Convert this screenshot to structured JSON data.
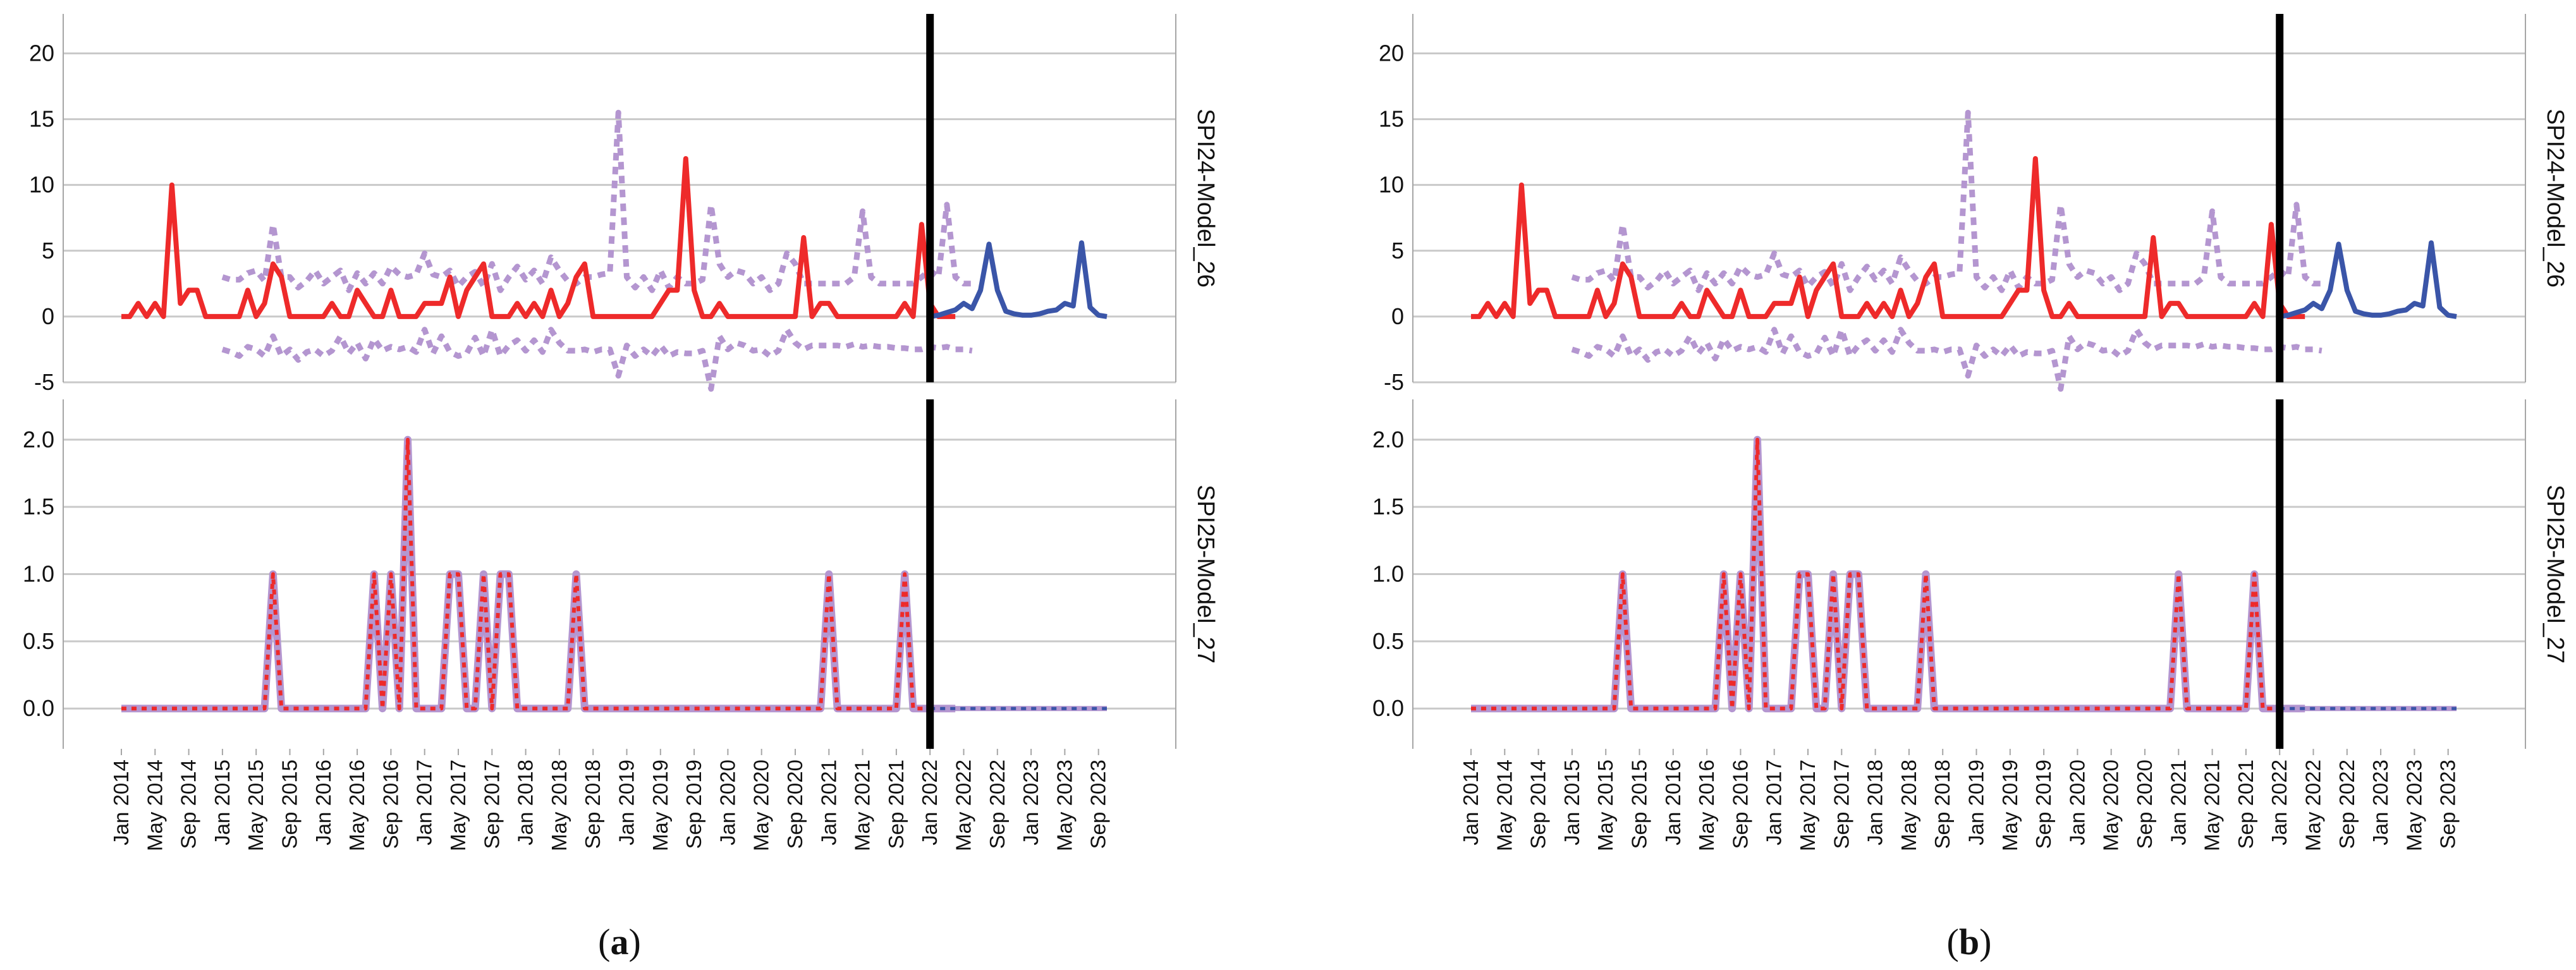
{
  "colors": {
    "observed": "#ee2a2a",
    "forecast": "#3a55a8",
    "bounds": "#b496d0",
    "divider": "#000000",
    "gridline": "#c9c9c9",
    "frame": "#a6a6a6"
  },
  "chart_data": [
    {
      "panel": "a",
      "caption": {
        "open": "(",
        "letter": "a",
        "close": ")"
      },
      "x_tick_labels": [
        "Jan 2014",
        "May 2014",
        "Sep 2014",
        "Jan 2015",
        "May 2015",
        "Sep 2015",
        "Jan 2016",
        "May 2016",
        "Sep 2016",
        "Jan 2017",
        "May 2017",
        "Sep 2017",
        "Jan 2018",
        "May 2018",
        "Sep 2018",
        "Jan 2019",
        "May 2019",
        "Sep 2019",
        "Jan 2020",
        "May 2020",
        "Sep 2020",
        "Jan 2021",
        "May 2021",
        "Sep 2021",
        "Jan 2022",
        "May 2022",
        "Sep 2022",
        "Jan 2023",
        "May 2023",
        "Sep 2023"
      ],
      "forecast_start": "Jan 2022",
      "subplots": [
        {
          "type": "line",
          "ylabel": "SPI24-Model_26",
          "ylim": [
            -5,
            23
          ],
          "yticks": [
            -5,
            0,
            5,
            10,
            15,
            20
          ],
          "ytick_labels": [
            "-5",
            "0",
            "5",
            "10",
            "15",
            "20"
          ],
          "observed": [
            0,
            0,
            1,
            0,
            1,
            0,
            10,
            1,
            2,
            2,
            0,
            0,
            0,
            0,
            0,
            2,
            0,
            1,
            4,
            3,
            0,
            0,
            0,
            0,
            0,
            1,
            0,
            0,
            2,
            1,
            0,
            0,
            2,
            0,
            0,
            0,
            1,
            1,
            1,
            3,
            0,
            2,
            3,
            4,
            0,
            0,
            0,
            1,
            0,
            1,
            0,
            2,
            0,
            1,
            3,
            4,
            0,
            0,
            0,
            0,
            0,
            0,
            0,
            0,
            1,
            2,
            2,
            12,
            2,
            0,
            0,
            1,
            0,
            0,
            0,
            0,
            0,
            0,
            0,
            0,
            0,
            6,
            0,
            1,
            1,
            0,
            0,
            0,
            0,
            0,
            0,
            0,
            0,
            1,
            0,
            7,
            1,
            0,
            0,
            0
          ],
          "forecast": [
            0,
            0.1,
            0.3,
            0.5,
            1,
            0.6,
            2,
            5.5,
            2,
            0.4,
            0.2,
            0.1,
            0.1,
            0.2,
            0.4,
            0.5,
            1,
            0.8,
            5.6,
            0.7,
            0.1,
            0
          ],
          "upper_bound": [
            3,
            2.8,
            2.8,
            3.3,
            3.5,
            2.7,
            7,
            3,
            3,
            2.2,
            2.7,
            3.5,
            2.5,
            3,
            3.5,
            2,
            3.3,
            2.5,
            3.3,
            2.5,
            3.8,
            3.2,
            3,
            3.2,
            4.8,
            3.2,
            3,
            3.5,
            2.3,
            3,
            3.4,
            2.3,
            4,
            2,
            3,
            3.8,
            2.8,
            3.5,
            2.5,
            4.5,
            3.5,
            2.7,
            2.5,
            3,
            3,
            3.2,
            3.3,
            15.5,
            3,
            2.2,
            3,
            2,
            3.5,
            2.2,
            3,
            2.5,
            2.5,
            2.8,
            8.5,
            4,
            3,
            3.5,
            3.3,
            2.5,
            3,
            2,
            2.5,
            4.8,
            4,
            2.5,
            2.5,
            2.5,
            2.5,
            2.5,
            2.5,
            3,
            8,
            3,
            2.5,
            2.5,
            2.5,
            2.5,
            2.5,
            3,
            3.5,
            3,
            8.5,
            3,
            2.5,
            2.5
          ],
          "lower_bound": [
            -2.5,
            -2.7,
            -3,
            -2.3,
            -2.5,
            -3,
            -1.5,
            -3,
            -2.5,
            -3.3,
            -2.7,
            -2.5,
            -3,
            -2.6,
            -1.5,
            -2.8,
            -2,
            -3.2,
            -1.7,
            -2.6,
            -2.3,
            -2.5,
            -2.3,
            -2.7,
            -1,
            -2.8,
            -1.5,
            -2.7,
            -3,
            -2.8,
            -1.6,
            -3,
            -1,
            -3,
            -2.2,
            -1.8,
            -2.6,
            -1.8,
            -2.7,
            -1,
            -2,
            -2.6,
            -2.6,
            -2.5,
            -2.7,
            -2.5,
            -2.5,
            -4.5,
            -2.2,
            -3,
            -2.5,
            -3,
            -2.2,
            -3,
            -2.7,
            -2.8,
            -2.8,
            -2.6,
            -5.5,
            -1.5,
            -2.5,
            -2,
            -2.2,
            -2.6,
            -2.5,
            -3,
            -2.6,
            -1,
            -2,
            -2.5,
            -2.2,
            -2.2,
            -2.2,
            -2.2,
            -2.3,
            -2.1,
            -2.3,
            -2.2,
            -2.3,
            -2.3,
            -2.4,
            -2.4,
            -2.5,
            -2.5,
            -2.3,
            -2.4,
            -2.3,
            -2.5,
            -2.5,
            -2.6
          ]
        },
        {
          "type": "line",
          "ylabel": "SPI25-Model_27",
          "ylim": [
            -0.3,
            2.3
          ],
          "yticks": [
            0,
            0.5,
            1.0,
            1.5,
            2.0
          ],
          "ytick_labels": [
            "0.0",
            "0.5",
            "1.0",
            "1.5",
            "2.0"
          ],
          "observed": [
            0,
            0,
            0,
            0,
            0,
            0,
            0,
            0,
            0,
            0,
            0,
            0,
            0,
            0,
            0,
            0,
            0,
            0,
            1,
            0,
            0,
            0,
            0,
            0,
            0,
            0,
            0,
            0,
            0,
            0,
            1,
            0,
            1,
            0,
            2,
            0,
            0,
            0,
            0,
            1,
            1,
            0,
            0,
            1,
            0,
            1,
            1,
            0,
            0,
            0,
            0,
            0,
            0,
            0,
            1,
            0,
            0,
            0,
            0,
            0,
            0,
            0,
            0,
            0,
            0,
            0,
            0,
            0,
            0,
            0,
            0,
            0,
            0,
            0,
            0,
            0,
            0,
            0,
            0,
            0,
            0,
            0,
            0,
            0,
            1,
            0,
            0,
            0,
            0,
            0,
            0,
            0,
            0,
            1,
            0,
            0,
            0,
            0,
            0,
            0
          ],
          "forecast": [
            0,
            0,
            0,
            0,
            0,
            0,
            0,
            0,
            0,
            0,
            0,
            0,
            0,
            0,
            0,
            0,
            0,
            0,
            0,
            0,
            0,
            0
          ]
        }
      ]
    },
    {
      "panel": "b",
      "caption": {
        "open": "(",
        "letter": "b",
        "close": ")"
      },
      "x_tick_labels": [
        "Jan 2014",
        "May 2014",
        "Sep 2014",
        "Jan 2015",
        "May 2015",
        "Sep 2015",
        "Jan 2016",
        "May 2016",
        "Sep 2016",
        "Jan 2017",
        "May 2017",
        "Sep 2017",
        "Jan 2018",
        "May 2018",
        "Sep 2018",
        "Jan 2019",
        "May 2019",
        "Sep 2019",
        "Jan 2020",
        "May 2020",
        "Sep 2020",
        "Jan 2021",
        "May 2021",
        "Sep 2021",
        "Jan 2022",
        "May 2022",
        "Sep 2022",
        "Jan 2023",
        "May 2023",
        "Sep 2023"
      ],
      "forecast_start": "Jan 2022",
      "subplots": [
        {
          "type": "line",
          "ylabel": "SPI24-Model_26",
          "ylim": [
            -5,
            23
          ],
          "yticks": [
            -5,
            0,
            5,
            10,
            15,
            20
          ],
          "ytick_labels": [
            "-5",
            "0",
            "5",
            "10",
            "15",
            "20"
          ],
          "observed": [
            0,
            0,
            1,
            0,
            1,
            0,
            10,
            1,
            2,
            2,
            0,
            0,
            0,
            0,
            0,
            2,
            0,
            1,
            4,
            3,
            0,
            0,
            0,
            0,
            0,
            1,
            0,
            0,
            2,
            1,
            0,
            0,
            2,
            0,
            0,
            0,
            1,
            1,
            1,
            3,
            0,
            2,
            3,
            4,
            0,
            0,
            0,
            1,
            0,
            1,
            0,
            2,
            0,
            1,
            3,
            4,
            0,
            0,
            0,
            0,
            0,
            0,
            0,
            0,
            1,
            2,
            2,
            12,
            2,
            0,
            0,
            1,
            0,
            0,
            0,
            0,
            0,
            0,
            0,
            0,
            0,
            6,
            0,
            1,
            1,
            0,
            0,
            0,
            0,
            0,
            0,
            0,
            0,
            1,
            0,
            7,
            1,
            0,
            0,
            0
          ],
          "forecast": [
            0,
            0.1,
            0.3,
            0.5,
            1,
            0.6,
            2,
            5.5,
            2,
            0.4,
            0.2,
            0.1,
            0.1,
            0.2,
            0.4,
            0.5,
            1,
            0.8,
            5.6,
            0.7,
            0.1,
            0
          ],
          "upper_bound": [
            3,
            2.8,
            2.8,
            3.3,
            3.5,
            2.7,
            7,
            3,
            3,
            2.2,
            2.7,
            3.5,
            2.5,
            3,
            3.5,
            2,
            3.3,
            2.5,
            3.3,
            2.5,
            3.8,
            3.2,
            3,
            3.2,
            4.8,
            3.2,
            3,
            3.5,
            2.3,
            3,
            3.4,
            2.3,
            4,
            2,
            3,
            3.8,
            2.8,
            3.5,
            2.5,
            4.5,
            3.5,
            2.7,
            2.5,
            3,
            3,
            3.2,
            3.3,
            15.5,
            3,
            2.2,
            3,
            2,
            3.5,
            2.2,
            3,
            2.5,
            2.5,
            2.8,
            8.5,
            4,
            3,
            3.5,
            3.3,
            2.5,
            3,
            2,
            2.5,
            4.8,
            4,
            2.5,
            2.5,
            2.5,
            2.5,
            2.5,
            2.5,
            3,
            8,
            3,
            2.5,
            2.5,
            2.5,
            2.5,
            2.5,
            3,
            3.5,
            3,
            8.5,
            3,
            2.5,
            2.5
          ],
          "lower_bound": [
            -2.5,
            -2.7,
            -3,
            -2.3,
            -2.5,
            -3,
            -1.5,
            -3,
            -2.5,
            -3.3,
            -2.7,
            -2.5,
            -3,
            -2.6,
            -1.5,
            -2.8,
            -2,
            -3.2,
            -1.7,
            -2.6,
            -2.3,
            -2.5,
            -2.3,
            -2.7,
            -1,
            -2.8,
            -1.5,
            -2.7,
            -3,
            -2.8,
            -1.6,
            -3,
            -1,
            -3,
            -2.2,
            -1.8,
            -2.6,
            -1.8,
            -2.7,
            -1,
            -2,
            -2.6,
            -2.6,
            -2.5,
            -2.7,
            -2.5,
            -2.5,
            -4.5,
            -2.2,
            -3,
            -2.5,
            -3,
            -2.2,
            -3,
            -2.7,
            -2.8,
            -2.8,
            -2.6,
            -5.5,
            -1.5,
            -2.5,
            -2,
            -2.2,
            -2.6,
            -2.5,
            -3,
            -2.6,
            -1,
            -2,
            -2.5,
            -2.2,
            -2.2,
            -2.2,
            -2.2,
            -2.3,
            -2.1,
            -2.3,
            -2.2,
            -2.3,
            -2.3,
            -2.4,
            -2.4,
            -2.5,
            -2.5,
            -2.3,
            -2.4,
            -2.3,
            -2.5,
            -2.5,
            -2.6
          ]
        },
        {
          "type": "line",
          "ylabel": "SPI25-Model_27",
          "ylim": [
            -0.3,
            2.3
          ],
          "yticks": [
            0,
            0.5,
            1.0,
            1.5,
            2.0
          ],
          "ytick_labels": [
            "0.0",
            "0.5",
            "1.0",
            "1.5",
            "2.0"
          ],
          "observed": [
            0,
            0,
            0,
            0,
            0,
            0,
            0,
            0,
            0,
            0,
            0,
            0,
            0,
            0,
            0,
            0,
            0,
            0,
            1,
            0,
            0,
            0,
            0,
            0,
            0,
            0,
            0,
            0,
            0,
            0,
            1,
            0,
            1,
            0,
            2,
            0,
            0,
            0,
            0,
            1,
            1,
            0,
            0,
            1,
            0,
            1,
            1,
            0,
            0,
            0,
            0,
            0,
            0,
            0,
            1,
            0,
            0,
            0,
            0,
            0,
            0,
            0,
            0,
            0,
            0,
            0,
            0,
            0,
            0,
            0,
            0,
            0,
            0,
            0,
            0,
            0,
            0,
            0,
            0,
            0,
            0,
            0,
            0,
            0,
            1,
            0,
            0,
            0,
            0,
            0,
            0,
            0,
            0,
            1,
            0,
            0,
            0,
            0,
            0,
            0
          ],
          "forecast": [
            0,
            0,
            0,
            0,
            0,
            0,
            0,
            0,
            0,
            0,
            0,
            0,
            0,
            0,
            0,
            0,
            0,
            0,
            0,
            0,
            0,
            0
          ]
        }
      ]
    }
  ]
}
